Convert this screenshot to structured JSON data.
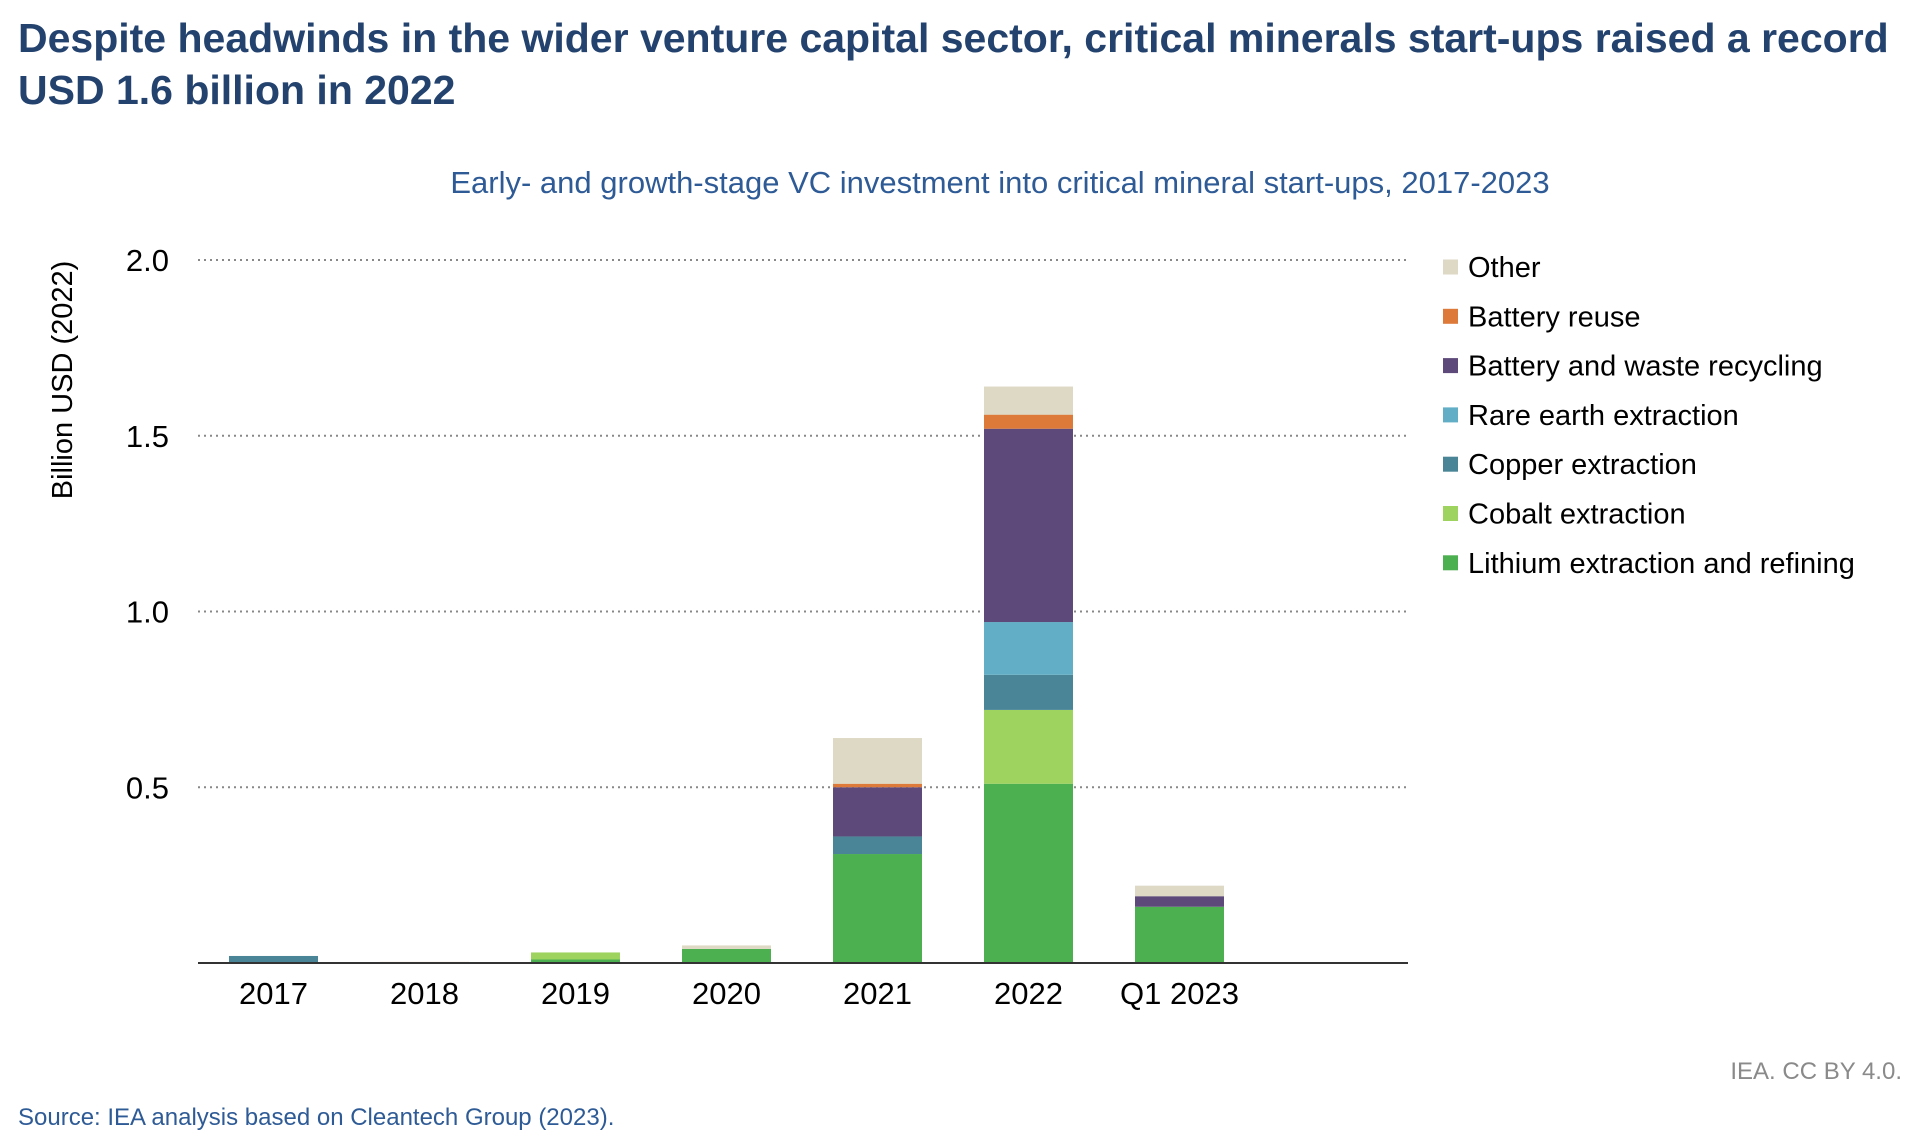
{
  "headline": "Despite headwinds in the wider venture capital sector, critical minerals start-ups raised a record USD 1.6 billion in 2022",
  "source": "Source: IEA analysis based on Cleantech Group (2023).",
  "credit": "IEA. CC BY 4.0.",
  "colors": {
    "title": "#23426e",
    "subtitle": "#2e5b96",
    "grid": "#888888",
    "axis": "#333333"
  },
  "chart_data": {
    "type": "bar",
    "stacked": true,
    "title": "Early- and growth-stage VC investment into critical mineral start-ups, 2017-2023",
    "xlabel": "",
    "ylabel": "Billion USD (2022)",
    "ylim": [
      0,
      2.0
    ],
    "yticks": [
      0.5,
      1.0,
      1.5,
      2.0
    ],
    "ytick_labels": [
      "0.5",
      "1.0",
      "1.5",
      "2.0"
    ],
    "grid": true,
    "legend_position": "right",
    "categories": [
      "2017",
      "2018",
      "2019",
      "2020",
      "2021",
      "2022",
      "Q1 2023"
    ],
    "series": [
      {
        "name": "Lithium extraction and refining",
        "color": "#4caf50",
        "values": [
          0,
          0,
          0.01,
          0.04,
          0.31,
          0.51,
          0.16
        ]
      },
      {
        "name": "Cobalt extraction",
        "color": "#9ed35f",
        "values": [
          0,
          0,
          0.02,
          0,
          0,
          0.21,
          0
        ]
      },
      {
        "name": "Copper extraction",
        "color": "#4a8597",
        "values": [
          0.02,
          0,
          0,
          0,
          0.05,
          0.1,
          0
        ]
      },
      {
        "name": "Rare earth extraction",
        "color": "#62aec6",
        "values": [
          0,
          0,
          0,
          0,
          0,
          0.15,
          0
        ]
      },
      {
        "name": "Battery and waste recycling",
        "color": "#5e4a7a",
        "values": [
          0,
          0,
          0,
          0,
          0.14,
          0.55,
          0.03
        ]
      },
      {
        "name": "Battery reuse",
        "color": "#dd7a3a",
        "values": [
          0,
          0.003,
          0,
          0,
          0.01,
          0.04,
          0
        ]
      },
      {
        "name": "Other",
        "color": "#ddd9c4",
        "values": [
          0,
          0,
          0,
          0.01,
          0.13,
          0.08,
          0.03
        ]
      }
    ]
  }
}
